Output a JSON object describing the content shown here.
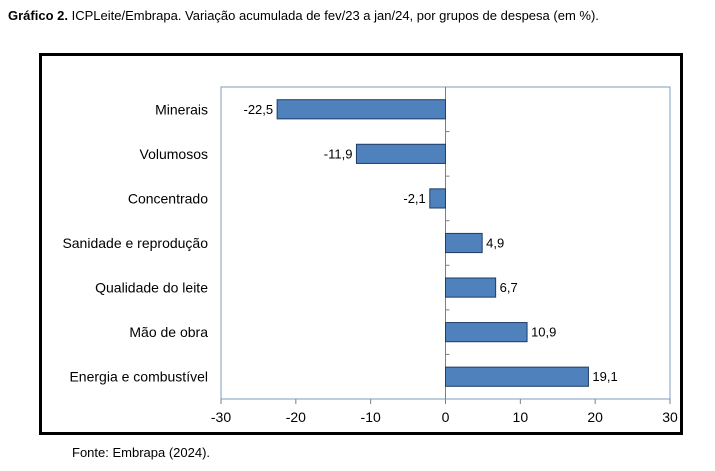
{
  "caption": {
    "label": "Gráfico 2.",
    "text": "ICPLeite/Embrapa. Variação acumulada de fev/23 a jan/24, por grupos de despesa (em %)."
  },
  "source": "Fonte: Embrapa (2024).",
  "colors": {
    "bar": "#4F81BD",
    "bar_edge": "#1F3D66",
    "plot_border": "#7F9EBB"
  },
  "chart_data": {
    "type": "bar",
    "orientation": "horizontal",
    "categories": [
      "Minerais",
      "Volumosos",
      "Concentrado",
      "Sanidade e reprodução",
      "Qualidade do leite",
      "Mão de obra",
      "Energia e combustível"
    ],
    "values": [
      -22.5,
      -11.9,
      -2.1,
      4.9,
      6.7,
      10.9,
      19.1
    ],
    "value_labels": [
      "-22,5",
      "-11,9",
      "-2,1",
      "4,9",
      "6,7",
      "10,9",
      "19,1"
    ],
    "xlim": [
      -30,
      30
    ],
    "xticks": [
      -30,
      -20,
      -10,
      0,
      10,
      20,
      30
    ],
    "title": "",
    "xlabel": "",
    "ylabel": "",
    "grid": false,
    "legend": "none"
  }
}
